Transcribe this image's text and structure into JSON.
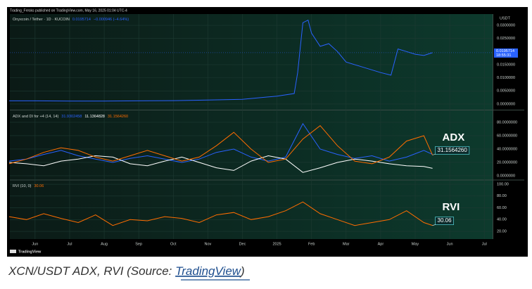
{
  "header": {
    "publisher": "Trading_Fresks published on TradingView.com, May 16, 2025 01:04 UTC-4",
    "logo": "TradingView"
  },
  "caption": {
    "before": "XCN/USDT ADX, RVI (Source: ",
    "link": "TradingView",
    "after": ")"
  },
  "chart_data": [
    {
      "type": "line",
      "title": "Onyxcoin / Tether · 1D · KUCOIN",
      "change": "−0.000946 (−4.64%)",
      "countdown": "18:55:31",
      "y_unit": "USDT",
      "x": [
        -0.75,
        0,
        1,
        2,
        3,
        4,
        5,
        6,
        7,
        7.5,
        7.6,
        7.75,
        7.9,
        8,
        8.25,
        8.5,
        8.75,
        9,
        9.5,
        10,
        10.3,
        10.5,
        10.75,
        11,
        11.25,
        11.5
      ],
      "xlim": [
        -0.73,
        13.24
      ],
      "ylim": [
        -0.0019,
        0.0343
      ],
      "yticks": [
        {
          "value": 0.03,
          "label": "0.0300000"
        },
        {
          "value": 0.025,
          "label": "0.0250000"
        },
        {
          "value": 0.015,
          "label": "0.0150000"
        },
        {
          "value": 0.01,
          "label": "0.0100000"
        },
        {
          "value": 0.005,
          "label": "0.0050000"
        },
        {
          "value": 0,
          "label": "0.0000000"
        }
      ],
      "series": [
        {
          "color": "#2962ff",
          "values": [
            0.0012,
            0.0012,
            0.0011,
            0.0011,
            0.0012,
            0.0013,
            0.0015,
            0.0018,
            0.003,
            0.004,
            0.012,
            0.031,
            0.032,
            0.027,
            0.022,
            0.023,
            0.02,
            0.016,
            0.014,
            0.012,
            0.011,
            0.021,
            0.02,
            0.019,
            0.0185,
            0.0195714
          ],
          "value_labels": [
            null,
            null,
            null,
            null,
            null,
            null,
            null,
            null,
            null,
            null,
            null,
            null,
            null,
            null,
            null,
            null,
            null,
            null,
            null,
            null,
            null,
            null,
            null,
            null,
            null,
            "0.0195714"
          ]
        }
      ]
    },
    {
      "type": "line",
      "title": "ADX and DI for +4 (14, 14)",
      "annotation": "ADX",
      "x": [
        -0.75,
        -0.25,
        0.25,
        0.75,
        1.25,
        1.75,
        2.25,
        2.75,
        3.25,
        3.75,
        4.25,
        4.75,
        5.25,
        5.75,
        6.25,
        6.75,
        7.25,
        7.75,
        8.25,
        8.75,
        9.25,
        9.75,
        10.25,
        10.75,
        11.25,
        11.5
      ],
      "xlim": [
        -0.73,
        13.24
      ],
      "ylim": [
        -5.3,
        96.8
      ],
      "yticks": [
        {
          "value": 80,
          "label": "80.0000000"
        },
        {
          "value": 60,
          "label": "60.0000000"
        },
        {
          "value": 40,
          "label": "40.0000000"
        },
        {
          "value": 20,
          "label": "20.0000000"
        },
        {
          "value": 0,
          "label": "0.0000000"
        }
      ],
      "series": [
        {
          "color": "#2962ff",
          "values": [
            22,
            25,
            32,
            38,
            30,
            25,
            20,
            26,
            30,
            25,
            20,
            25,
            35,
            40,
            28,
            22,
            28,
            78,
            40,
            32,
            26,
            30,
            22,
            28,
            38,
            31.9302458
          ],
          "value_labels": [
            null,
            null,
            null,
            null,
            null,
            null,
            null,
            null,
            null,
            null,
            null,
            null,
            null,
            null,
            null,
            null,
            null,
            null,
            null,
            null,
            null,
            null,
            null,
            null,
            null,
            "31.9302458"
          ]
        },
        {
          "color": "#ffffff",
          "values": [
            20,
            18,
            15,
            22,
            25,
            30,
            28,
            18,
            15,
            22,
            28,
            20,
            12,
            8,
            22,
            30,
            25,
            5,
            12,
            20,
            25,
            22,
            18,
            15,
            14,
            11.1364828
          ],
          "value_labels": [
            null,
            null,
            null,
            null,
            null,
            null,
            null,
            null,
            null,
            null,
            null,
            null,
            null,
            null,
            null,
            null,
            null,
            null,
            null,
            null,
            null,
            null,
            null,
            null,
            null,
            "11.1364828"
          ]
        },
        {
          "color": "#ff6d00",
          "values": [
            18,
            25,
            35,
            42,
            38,
            28,
            22,
            30,
            38,
            30,
            22,
            28,
            45,
            65,
            40,
            20,
            25,
            55,
            75,
            45,
            22,
            18,
            28,
            52,
            60,
            31.156426
          ],
          "value_labels": [
            null,
            null,
            null,
            null,
            null,
            null,
            null,
            null,
            null,
            null,
            null,
            null,
            null,
            null,
            null,
            null,
            null,
            null,
            null,
            null,
            null,
            null,
            null,
            null,
            null,
            "31.1564260"
          ]
        }
      ]
    },
    {
      "type": "line",
      "title": "RVI (10, 0)",
      "annotation": "RVI",
      "x": [
        -0.75,
        -0.25,
        0.25,
        0.75,
        1.25,
        1.75,
        2.25,
        2.75,
        3.25,
        3.75,
        4.25,
        4.75,
        5.25,
        5.75,
        6.25,
        6.75,
        7.25,
        7.75,
        8.25,
        8.75,
        9.25,
        9.75,
        10.25,
        10.75,
        11.25,
        11.5
      ],
      "xlim": [
        -0.73,
        13.24
      ],
      "ylim": [
        6.9,
        106
      ],
      "xticks": [
        {
          "value": 0,
          "label": "Jun"
        },
        {
          "value": 1,
          "label": "Jul"
        },
        {
          "value": 2,
          "label": "Aug"
        },
        {
          "value": 3,
          "label": "Sep"
        },
        {
          "value": 4,
          "label": "Oct"
        },
        {
          "value": 5,
          "label": "Nov"
        },
        {
          "value": 6,
          "label": "Dec"
        },
        {
          "value": 7,
          "label": "2025"
        },
        {
          "value": 8,
          "label": "Feb"
        },
        {
          "value": 9,
          "label": "Mar"
        },
        {
          "value": 10,
          "label": "Apr"
        },
        {
          "value": 11,
          "label": "May"
        },
        {
          "value": 12,
          "label": "Jun"
        },
        {
          "value": 13,
          "label": "Jul"
        }
      ],
      "yticks": [
        {
          "value": 100,
          "label": "100.00"
        },
        {
          "value": 80,
          "label": "80.00"
        },
        {
          "value": 60,
          "label": "60.00"
        },
        {
          "value": 40,
          "label": "40.00"
        },
        {
          "value": 20,
          "label": "20.00"
        }
      ],
      "series": [
        {
          "color": "#ff6d00",
          "values": [
            45,
            40,
            50,
            42,
            35,
            48,
            30,
            40,
            38,
            45,
            42,
            35,
            48,
            52,
            40,
            45,
            55,
            70,
            50,
            40,
            30,
            35,
            40,
            55,
            35,
            30.06
          ]
        }
      ]
    }
  ]
}
